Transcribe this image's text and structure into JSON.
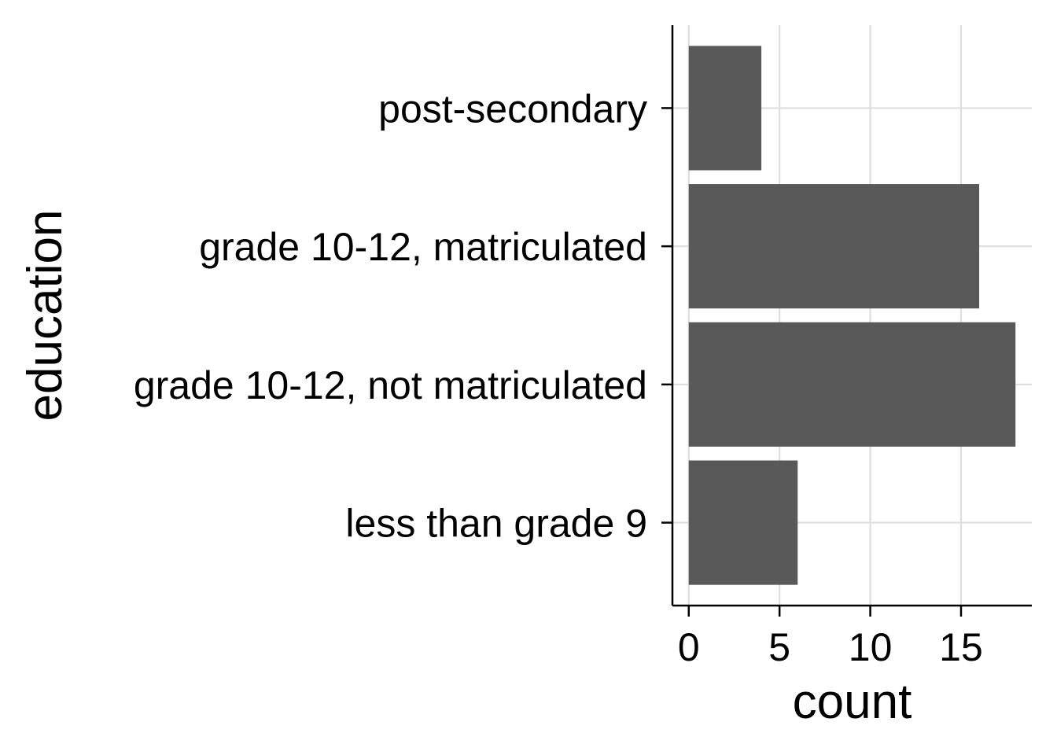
{
  "chart_data": {
    "type": "bar",
    "orientation": "horizontal",
    "categories": [
      "less than grade 9",
      "grade 10-12, not matriculated",
      "grade 10-12, matriculated",
      "post-secondary"
    ],
    "values": [
      6,
      18,
      16,
      4
    ],
    "xlabel": "count",
    "ylabel": "education",
    "x_ticks": [
      0,
      5,
      10,
      15
    ],
    "xlim": [
      -0.9,
      18.9
    ],
    "grid": true,
    "bar_color": "#595959",
    "grid_color": "#dedede"
  }
}
